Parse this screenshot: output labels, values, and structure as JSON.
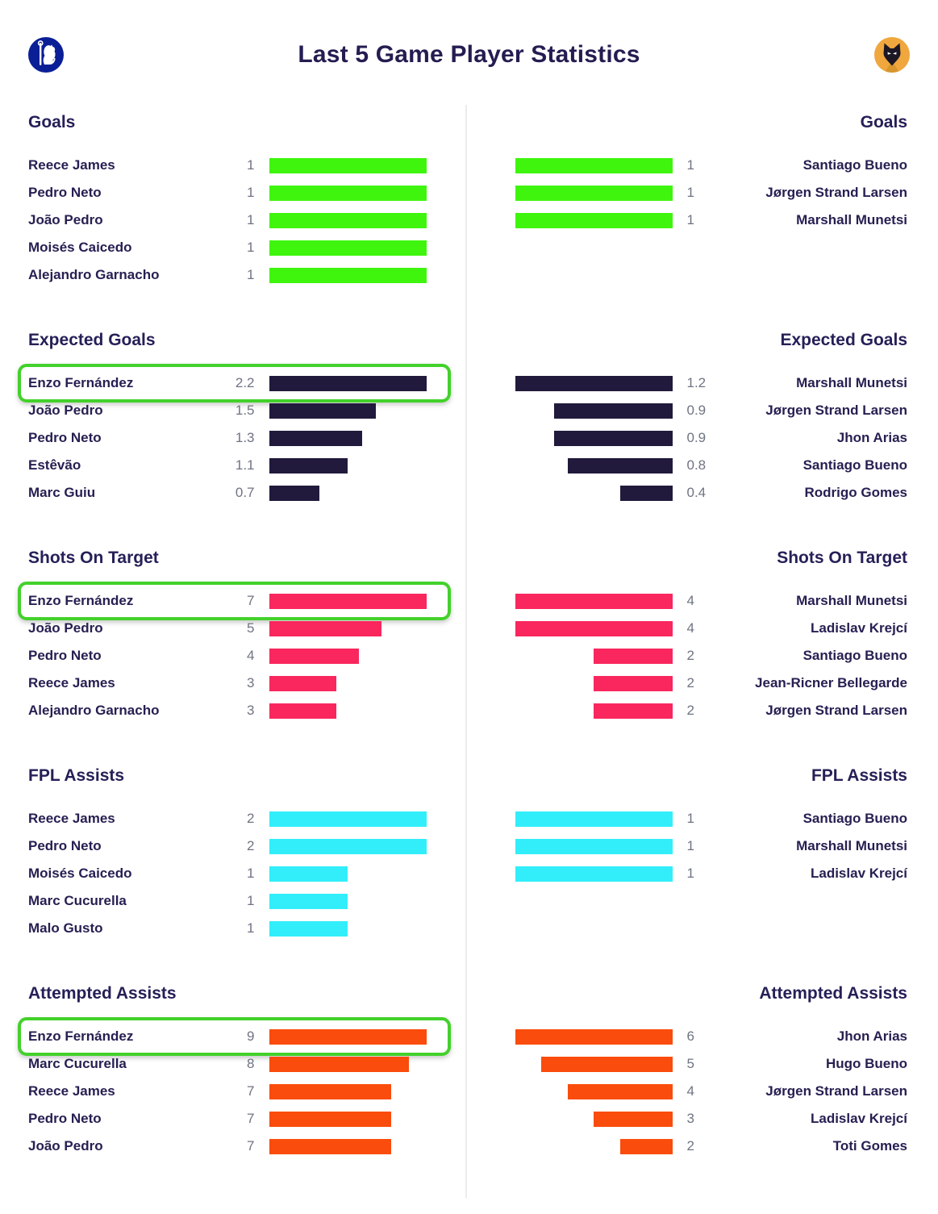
{
  "header": {
    "title": "Last 5 Game Player Statistics",
    "left_badge_icon": "chelsea-crest-icon",
    "right_badge_icon": "wolves-crest-icon",
    "left_badge_color": "#0a1f96",
    "right_badge_color": "#efa73e"
  },
  "colors": {
    "heading_text": "#231d51",
    "player_name_text": "#262052",
    "value_text": "#6f7482",
    "highlight_border": "#43d12b",
    "divider": "#ececec"
  },
  "chart_data": [
    {
      "type": "bar",
      "title": "Goals",
      "orientation": "horizontal",
      "bar_color": "#3ff50e",
      "left": {
        "categories": [
          "Reece James",
          "Pedro Neto",
          "João Pedro",
          "Moisés Caicedo",
          "Alejandro Garnacho"
        ],
        "values": [
          1,
          1,
          1,
          1,
          1
        ],
        "highlighted": []
      },
      "right": {
        "categories": [
          "Santiago Bueno",
          "Jørgen Strand Larsen",
          "Marshall Munetsi"
        ],
        "values": [
          1,
          1,
          1
        ],
        "highlighted": []
      }
    },
    {
      "type": "bar",
      "title": "Expected Goals",
      "orientation": "horizontal",
      "bar_color": "#221a3c",
      "left": {
        "categories": [
          "Enzo Fernández",
          "João Pedro",
          "Pedro Neto",
          "Estêvão",
          "Marc Guiu"
        ],
        "values": [
          2.2,
          1.5,
          1.3,
          1.1,
          0.7
        ],
        "highlighted": [
          0
        ]
      },
      "right": {
        "categories": [
          "Marshall Munetsi",
          "Jørgen Strand Larsen",
          "Jhon Arias",
          "Santiago Bueno",
          "Rodrigo Gomes"
        ],
        "values": [
          1.2,
          0.9,
          0.9,
          0.8,
          0.4
        ],
        "highlighted": []
      }
    },
    {
      "type": "bar",
      "title": "Shots On Target",
      "orientation": "horizontal",
      "bar_color": "#f9275e",
      "left": {
        "categories": [
          "Enzo Fernández",
          "João Pedro",
          "Pedro Neto",
          "Reece James",
          "Alejandro Garnacho"
        ],
        "values": [
          7,
          5,
          4,
          3,
          3
        ],
        "highlighted": [
          0
        ]
      },
      "right": {
        "categories": [
          "Marshall Munetsi",
          "Ladislav Krejcí",
          "Santiago Bueno",
          "Jean-Ricner Bellegarde",
          "Jørgen Strand Larsen"
        ],
        "values": [
          4,
          4,
          2,
          2,
          2
        ],
        "highlighted": []
      }
    },
    {
      "type": "bar",
      "title": "FPL Assists",
      "orientation": "horizontal",
      "bar_color": "#31eefa",
      "left": {
        "categories": [
          "Reece James",
          "Pedro Neto",
          "Moisés Caicedo",
          "Marc Cucurella",
          "Malo Gusto"
        ],
        "values": [
          2,
          2,
          1,
          1,
          1
        ],
        "highlighted": []
      },
      "right": {
        "categories": [
          "Santiago Bueno",
          "Marshall Munetsi",
          "Ladislav Krejcí"
        ],
        "values": [
          1,
          1,
          1
        ],
        "highlighted": []
      }
    },
    {
      "type": "bar",
      "title": "Attempted Assists",
      "orientation": "horizontal",
      "bar_color": "#fa4c0c",
      "left": {
        "categories": [
          "Enzo Fernández",
          "Marc Cucurella",
          "Reece James",
          "Pedro Neto",
          "João Pedro"
        ],
        "values": [
          9,
          8,
          7,
          7,
          7
        ],
        "highlighted": [
          0
        ]
      },
      "right": {
        "categories": [
          "Jhon Arias",
          "Hugo Bueno",
          "Jørgen Strand Larsen",
          "Ladislav Krejcí",
          "Toti Gomes"
        ],
        "values": [
          6,
          5,
          4,
          3,
          2
        ],
        "highlighted": []
      }
    }
  ]
}
